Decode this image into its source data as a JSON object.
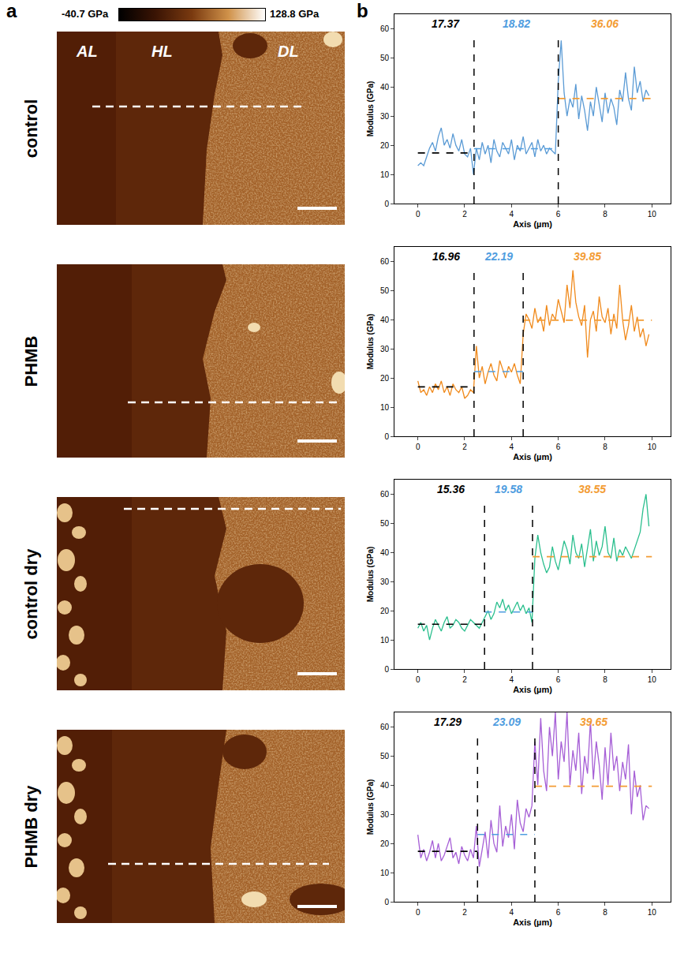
{
  "figure": {
    "panel_labels": [
      "a",
      "b"
    ],
    "colorbar": {
      "min": {
        "value": -40.7,
        "label": "-40.7 GPa"
      },
      "max": {
        "value": 128.8,
        "label": "128.8 GPa"
      }
    },
    "zone_labels": [
      "AL",
      "HL",
      "DL"
    ],
    "row_labels": [
      "control",
      "PHMB",
      "control dry",
      "PHMB dry"
    ]
  },
  "chart_data": [
    {
      "type": "line",
      "x_label": "Axis (µm)",
      "y_label": "Modulus (GPa)",
      "grid": false,
      "xlim": [
        -1,
        10.8
      ],
      "xticks": [
        0,
        2,
        4,
        6,
        8,
        10
      ],
      "ylim": [
        0,
        65
      ],
      "yticks": [
        0,
        10,
        20,
        30,
        40,
        50,
        60
      ],
      "x": [
        0,
        0.125,
        0.25,
        0.375,
        0.5,
        0.625,
        0.75,
        0.875,
        1,
        1.125,
        1.25,
        1.375,
        1.5,
        1.625,
        1.75,
        1.875,
        2,
        2.125,
        2.25,
        2.375,
        2.5,
        2.625,
        2.75,
        2.875,
        3,
        3.125,
        3.25,
        3.375,
        3.5,
        3.625,
        3.75,
        3.875,
        4,
        4.125,
        4.25,
        4.375,
        4.5,
        4.625,
        4.75,
        4.875,
        5,
        5.125,
        5.25,
        5.375,
        5.5,
        5.625,
        5.75,
        5.875,
        6,
        6.125,
        6.25,
        6.375,
        6.5,
        6.625,
        6.75,
        6.875,
        7,
        7.125,
        7.25,
        7.375,
        7.5,
        7.625,
        7.75,
        7.875,
        8,
        8.125,
        8.25,
        8.375,
        8.5,
        8.625,
        8.75,
        8.875,
        9,
        9.125,
        9.25,
        9.375,
        9.5,
        9.625,
        9.75,
        9.875
      ],
      "series": [
        {
          "color": "#5b9bd5",
          "values": [
            13,
            14,
            13,
            16,
            19,
            21,
            18,
            23,
            26,
            20,
            22,
            19,
            24,
            20,
            18,
            22,
            17,
            16,
            19,
            10,
            19,
            15,
            21,
            17,
            20,
            14,
            22,
            18,
            16,
            21,
            19,
            17,
            22,
            15,
            20,
            18,
            23,
            17,
            19,
            21,
            16,
            22,
            18,
            20,
            17,
            19,
            18,
            17,
            42,
            56,
            38,
            30,
            36,
            33,
            41,
            29,
            37,
            32,
            25,
            35,
            30,
            40,
            34,
            28,
            38,
            31,
            36,
            33,
            27,
            39,
            35,
            45,
            36,
            32,
            47,
            38,
            42,
            35,
            39,
            37
          ]
        }
      ],
      "boundaries": [
        2.4,
        6
      ],
      "segments": [
        {
          "start": 0,
          "end": 2.4,
          "value": 17.37,
          "color": "#000000"
        },
        {
          "start": 2.4,
          "end": 6,
          "value": 18.82,
          "color": "#4f9de0"
        },
        {
          "start": 6,
          "end": 10,
          "value": 36.06,
          "color": "#f39c34"
        }
      ]
    },
    {
      "type": "line",
      "x_label": "Axis (µm)",
      "y_label": "Modulus (GPa)",
      "grid": false,
      "xlim": [
        -1,
        10.8
      ],
      "xticks": [
        0,
        2,
        4,
        6,
        8,
        10
      ],
      "ylim": [
        0,
        65
      ],
      "yticks": [
        0,
        10,
        20,
        30,
        40,
        50,
        60
      ],
      "x": [
        0,
        0.125,
        0.25,
        0.375,
        0.5,
        0.625,
        0.75,
        0.875,
        1,
        1.125,
        1.25,
        1.375,
        1.5,
        1.625,
        1.75,
        1.875,
        2,
        2.125,
        2.25,
        2.375,
        2.5,
        2.625,
        2.75,
        2.875,
        3,
        3.125,
        3.25,
        3.375,
        3.5,
        3.625,
        3.75,
        3.875,
        4,
        4.125,
        4.25,
        4.375,
        4.5,
        4.625,
        4.75,
        4.875,
        5,
        5.125,
        5.25,
        5.375,
        5.5,
        5.625,
        5.75,
        5.875,
        6,
        6.125,
        6.25,
        6.375,
        6.5,
        6.625,
        6.75,
        6.875,
        7,
        7.125,
        7.25,
        7.375,
        7.5,
        7.625,
        7.75,
        7.875,
        8,
        8.125,
        8.25,
        8.375,
        8.5,
        8.625,
        8.75,
        8.875,
        9,
        9.125,
        9.25,
        9.375,
        9.5,
        9.625,
        9.75,
        9.875
      ],
      "series": [
        {
          "color": "#f08a1c",
          "values": [
            19,
            15,
            16,
            14,
            17,
            15,
            18,
            16,
            19,
            15,
            17,
            14,
            18,
            16,
            15,
            17,
            13,
            14,
            16,
            15,
            31,
            20,
            24,
            18,
            22,
            25,
            21,
            19,
            26,
            23,
            20,
            24,
            22,
            25,
            21,
            18,
            35,
            42,
            40,
            37,
            44,
            39,
            41,
            36,
            45,
            38,
            42,
            40,
            47,
            43,
            39,
            52,
            44,
            57,
            46,
            41,
            38,
            45,
            27,
            40,
            43,
            36,
            48,
            41,
            39,
            44,
            35,
            42,
            37,
            52,
            40,
            33,
            38,
            45,
            36,
            41,
            34,
            37,
            31,
            35
          ]
        }
      ],
      "boundaries": [
        2.4,
        4.5
      ],
      "segments": [
        {
          "start": 0,
          "end": 2.4,
          "value": 16.96,
          "color": "#000000"
        },
        {
          "start": 2.4,
          "end": 4.5,
          "value": 22.19,
          "color": "#4f9de0"
        },
        {
          "start": 4.5,
          "end": 10,
          "value": 39.85,
          "color": "#f39c34"
        }
      ]
    },
    {
      "type": "line",
      "x_label": "Axis (µm)",
      "y_label": "Modulus (GPa)",
      "grid": false,
      "xlim": [
        -1,
        10.8
      ],
      "xticks": [
        0,
        2,
        4,
        6,
        8,
        10
      ],
      "ylim": [
        0,
        65
      ],
      "yticks": [
        0,
        10,
        20,
        30,
        40,
        50,
        60
      ],
      "x": [
        0,
        0.125,
        0.25,
        0.375,
        0.5,
        0.625,
        0.75,
        0.875,
        1,
        1.125,
        1.25,
        1.375,
        1.5,
        1.625,
        1.75,
        1.875,
        2,
        2.125,
        2.25,
        2.375,
        2.5,
        2.625,
        2.75,
        2.875,
        3,
        3.125,
        3.25,
        3.375,
        3.5,
        3.625,
        3.75,
        3.875,
        4,
        4.125,
        4.25,
        4.375,
        4.5,
        4.625,
        4.75,
        4.875,
        5,
        5.125,
        5.25,
        5.375,
        5.5,
        5.625,
        5.75,
        5.875,
        6,
        6.125,
        6.25,
        6.375,
        6.5,
        6.625,
        6.75,
        6.875,
        7,
        7.125,
        7.25,
        7.375,
        7.5,
        7.625,
        7.75,
        7.875,
        8,
        8.125,
        8.25,
        8.375,
        8.5,
        8.625,
        8.75,
        8.875,
        9,
        9.125,
        9.25,
        9.375,
        9.5,
        9.625,
        9.75,
        9.875
      ],
      "series": [
        {
          "color": "#2bbf8e",
          "values": [
            14,
            16,
            13,
            15,
            10,
            14,
            17,
            15,
            13,
            16,
            18,
            14,
            15,
            17,
            16,
            14,
            13,
            15,
            17,
            16,
            15,
            14,
            16,
            18,
            20,
            17,
            19,
            23,
            21,
            24,
            20,
            22,
            19,
            21,
            23,
            20,
            22,
            19,
            21,
            16,
            38,
            46,
            40,
            36,
            33,
            35,
            42,
            37,
            34,
            39,
            44,
            41,
            36,
            46,
            40,
            38,
            43,
            35,
            41,
            48,
            37,
            44,
            39,
            42,
            49,
            40,
            38,
            45,
            37,
            41,
            39,
            42,
            40,
            38,
            41,
            44,
            47,
            55,
            60,
            49
          ]
        }
      ],
      "boundaries": [
        2.85,
        4.9
      ],
      "segments": [
        {
          "start": 0,
          "end": 2.85,
          "value": 15.36,
          "color": "#000000"
        },
        {
          "start": 2.85,
          "end": 4.9,
          "value": 19.58,
          "color": "#4f9de0"
        },
        {
          "start": 4.9,
          "end": 10,
          "value": 38.55,
          "color": "#f39c34"
        }
      ]
    },
    {
      "type": "line",
      "x_label": "Axis (µm)",
      "y_label": "Modulus (GPa)",
      "grid": false,
      "xlim": [
        -1,
        10.8
      ],
      "xticks": [
        0,
        2,
        4,
        6,
        8,
        10
      ],
      "ylim": [
        0,
        65
      ],
      "yticks": [
        0,
        10,
        20,
        30,
        40,
        50,
        60
      ],
      "x": [
        0,
        0.125,
        0.25,
        0.375,
        0.5,
        0.625,
        0.75,
        0.875,
        1,
        1.125,
        1.25,
        1.375,
        1.5,
        1.625,
        1.75,
        1.875,
        2,
        2.125,
        2.25,
        2.375,
        2.5,
        2.625,
        2.75,
        2.875,
        3,
        3.125,
        3.25,
        3.375,
        3.5,
        3.625,
        3.75,
        3.875,
        4,
        4.125,
        4.25,
        4.375,
        4.5,
        4.625,
        4.75,
        4.875,
        5,
        5.125,
        5.25,
        5.375,
        5.5,
        5.625,
        5.75,
        5.875,
        6,
        6.125,
        6.25,
        6.375,
        6.5,
        6.625,
        6.75,
        6.875,
        7,
        7.125,
        7.25,
        7.375,
        7.5,
        7.625,
        7.75,
        7.875,
        8,
        8.125,
        8.25,
        8.375,
        8.5,
        8.625,
        8.75,
        8.875,
        9,
        9.125,
        9.25,
        9.375,
        9.5,
        9.625,
        9.75,
        9.875
      ],
      "series": [
        {
          "color": "#a65fd6",
          "values": [
            23,
            15,
            18,
            14,
            17,
            21,
            15,
            20,
            14,
            16,
            19,
            22,
            15,
            17,
            13,
            19,
            16,
            14,
            18,
            15,
            26,
            12,
            18,
            24,
            15,
            28,
            20,
            17,
            33,
            19,
            26,
            22,
            30,
            18,
            35,
            27,
            24,
            32,
            29,
            33,
            55,
            40,
            63,
            45,
            38,
            60,
            50,
            65,
            42,
            55,
            48,
            65,
            40,
            52,
            45,
            58,
            37,
            50,
            44,
            62,
            42,
            55,
            47,
            35,
            53,
            40,
            58,
            45,
            50,
            38,
            48,
            42,
            54,
            30,
            45,
            36,
            40,
            28,
            33,
            32
          ]
        }
      ],
      "boundaries": [
        2.55,
        5
      ],
      "segments": [
        {
          "start": 0,
          "end": 2.55,
          "value": 17.29,
          "color": "#000000"
        },
        {
          "start": 2.55,
          "end": 5,
          "value": 23.09,
          "color": "#4f9de0"
        },
        {
          "start": 5,
          "end": 10,
          "value": 39.65,
          "color": "#f39c34"
        }
      ]
    }
  ]
}
